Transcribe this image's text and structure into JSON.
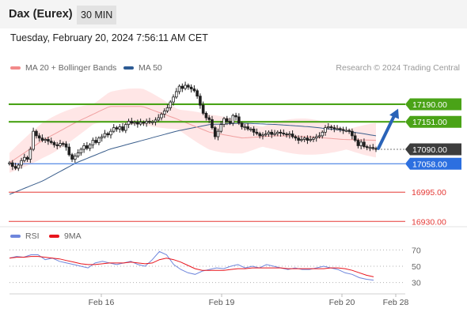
{
  "header": {
    "title": "Dax (Eurex)",
    "interval": "30 MIN"
  },
  "timestamp": "Tuesday, February 20, 2024 7:56:11 AM CET",
  "credit": "Research © 2024 Trading Central",
  "legend": [
    {
      "label": "MA 20 + Bollinger Bands",
      "color": "#f28a8a"
    },
    {
      "label": "MA 50",
      "color": "#2d5b94"
    }
  ],
  "rsi_legend": [
    {
      "label": "RSI",
      "color": "#6e86dc"
    },
    {
      "label": "9MA",
      "color": "#e8141c"
    }
  ],
  "colors": {
    "candle": "#1f1f1f",
    "resistance": "#4aa317",
    "current": "#3d3d3d",
    "pivot": "#2c6fe0",
    "support": "#e53935",
    "arrow": "#2a63b8",
    "ma20": "#f0a0a0",
    "band": "#ffe6e6",
    "ma50": "#3a5e8c"
  },
  "chart_data": [
    {
      "type": "candlestick",
      "title": "Dax (Eurex)",
      "interval": "30 MIN",
      "x_ticks": [
        "Feb 16",
        "Feb 19",
        "Feb 20",
        "Feb 28"
      ],
      "ylim": [
        16920,
        17260
      ],
      "price_levels": [
        {
          "value": 17190.0,
          "label": "17190.00",
          "kind": "resistance"
        },
        {
          "value": 17151.0,
          "label": "17151.00",
          "kind": "resistance"
        },
        {
          "value": 17090.0,
          "label": "17090.00",
          "kind": "current"
        },
        {
          "value": 17058.0,
          "label": "17058.00",
          "kind": "pivot"
        },
        {
          "value": 16995.0,
          "label": "16995.00",
          "kind": "support"
        },
        {
          "value": 16930.0,
          "label": "16930.00",
          "kind": "support"
        }
      ],
      "forecast_arrow": {
        "from": 17092,
        "to": 17180
      },
      "series": [
        {
          "name": "price",
          "values": [
            17060,
            17052,
            17048,
            17055,
            17065,
            17072,
            17068,
            17090,
            17130,
            17120,
            17115,
            17110,
            17112,
            17108,
            17105,
            17100,
            17098,
            17103,
            17102,
            17095,
            17078,
            17068,
            17075,
            17082,
            17090,
            17098,
            17092,
            17100,
            17110,
            17105,
            17115,
            17118,
            17125,
            17122,
            17130,
            17138,
            17135,
            17140,
            17132,
            17145,
            17152,
            17148,
            17150,
            17146,
            17150,
            17148,
            17152,
            17150,
            17151,
            17155,
            17160,
            17168,
            17175,
            17182,
            17195,
            17206,
            17218,
            17230,
            17225,
            17232,
            17228,
            17224,
            17220,
            17208,
            17188,
            17170,
            17160,
            17156,
            17138,
            17118,
            17130,
            17145,
            17158,
            17152,
            17148,
            17165,
            17162,
            17148,
            17140,
            17140,
            17135,
            17135,
            17128,
            17125,
            17120,
            17122,
            17124,
            17128,
            17123,
            17125,
            17128,
            17126,
            17124,
            17122,
            17124,
            17118,
            17115,
            17110,
            17112,
            17115,
            17110,
            17112,
            17115,
            17118,
            17120,
            17128,
            17138,
            17140,
            17138,
            17136,
            17136,
            17134,
            17132,
            17132,
            17130,
            17120,
            17110,
            17098,
            17106,
            17096,
            17094,
            17094,
            17092,
            17090
          ]
        },
        {
          "name": "MA 20",
          "values": [
            17060,
            17110,
            17150,
            17185,
            17185,
            17158,
            17128,
            17115,
            17120,
            17118,
            17112,
            17110
          ]
        },
        {
          "name": "MA 50",
          "values": [
            16990,
            17020,
            17060,
            17090,
            17110,
            17130,
            17145,
            17148,
            17145,
            17140,
            17132,
            17120
          ]
        }
      ]
    },
    {
      "type": "line",
      "title": "RSI",
      "ylim": [
        20,
        80
      ],
      "y_ticks": [
        70,
        50,
        30
      ],
      "series": [
        {
          "name": "RSI",
          "values": [
            60,
            62,
            61,
            64,
            64,
            58,
            60,
            56,
            54,
            52,
            50,
            48,
            54,
            56,
            54,
            52,
            54,
            56,
            52,
            50,
            58,
            68,
            64,
            52,
            46,
            42,
            40,
            44,
            46,
            48,
            47,
            50,
            52,
            48,
            50,
            48,
            52,
            50,
            48,
            46,
            48,
            46,
            46,
            48,
            50,
            48,
            46,
            42,
            40,
            36,
            34,
            33
          ]
        },
        {
          "name": "9MA",
          "values": [
            60,
            61,
            61,
            62,
            62,
            61,
            60,
            59,
            57,
            55,
            53,
            52,
            52,
            53,
            54,
            54,
            54,
            55,
            54,
            53,
            54,
            58,
            60,
            58,
            55,
            51,
            47,
            45,
            45,
            45,
            45,
            46,
            47,
            47,
            48,
            48,
            48,
            48,
            48,
            47,
            47,
            47,
            47,
            47,
            47,
            48,
            48,
            47,
            45,
            42,
            39,
            37
          ]
        }
      ]
    }
  ]
}
